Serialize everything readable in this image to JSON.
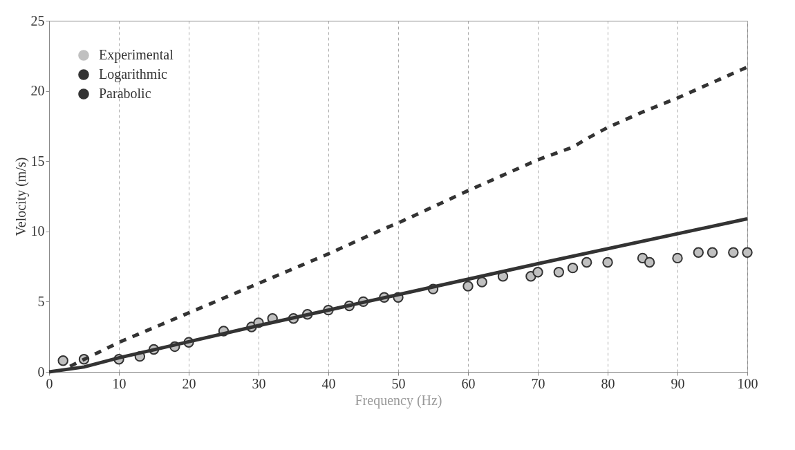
{
  "chart_data": {
    "type": "scatter",
    "xlabel": "Frequency (Hz)",
    "ylabel": "Velocity (m/s)",
    "xlim": [
      0,
      100
    ],
    "ylim": [
      0,
      25
    ],
    "xticks": [
      0,
      10,
      20,
      30,
      40,
      50,
      60,
      70,
      80,
      90,
      100
    ],
    "yticks": [
      0,
      5,
      10,
      15,
      20,
      25
    ],
    "grid": "x",
    "legend": "top left",
    "series": [
      {
        "name": "Experimental",
        "type": "scatter",
        "marker": "circle",
        "color": "#c0c0c0",
        "x": [
          2,
          5,
          10,
          13,
          15,
          18,
          20,
          25,
          29,
          30,
          32,
          35,
          37,
          40,
          43,
          45,
          48,
          50,
          55,
          60,
          62,
          65,
          69,
          70,
          73,
          75,
          77,
          80,
          85,
          86,
          90,
          93,
          95,
          98,
          100
        ],
        "values": [
          0.8,
          0.9,
          0.9,
          1.1,
          1.6,
          1.8,
          2.1,
          2.9,
          3.2,
          3.5,
          3.8,
          3.8,
          4.1,
          4.4,
          4.7,
          5.0,
          5.3,
          5.3,
          5.9,
          6.1,
          6.4,
          6.8,
          6.8,
          7.1,
          7.1,
          7.4,
          7.8,
          7.8,
          8.1,
          7.8,
          8.1,
          8.5,
          8.5,
          8.5,
          8.5
        ]
      },
      {
        "name": "Logarithmic",
        "type": "line",
        "line_style": "solid",
        "color": "#333333",
        "x": [
          0,
          5,
          10,
          30,
          50,
          70,
          100
        ],
        "values": [
          0,
          0.35,
          1.0,
          3.3,
          5.5,
          7.7,
          10.9
        ]
      },
      {
        "name": "Parabolic",
        "type": "line",
        "line_style": "dashed",
        "color": "#333333",
        "x": [
          3,
          10,
          20,
          30,
          40,
          48,
          50,
          60,
          70,
          75,
          77,
          80,
          85,
          90,
          100
        ],
        "values": [
          0.4,
          2.1,
          4.2,
          6.3,
          8.4,
          10.2,
          10.6,
          12.9,
          15.1,
          16.0,
          16.6,
          17.4,
          18.5,
          19.5,
          21.7
        ]
      }
    ]
  }
}
